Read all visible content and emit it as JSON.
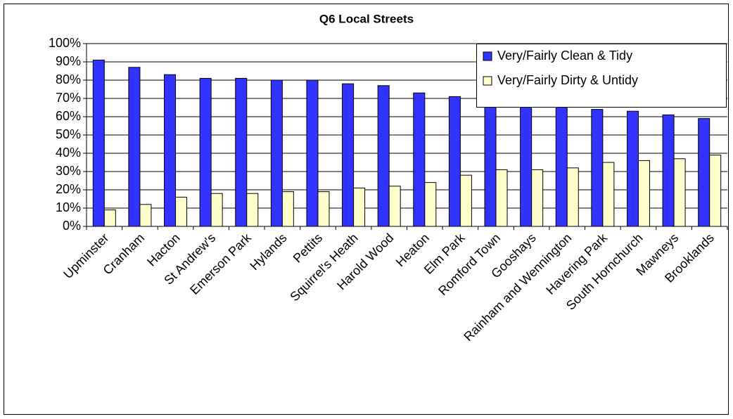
{
  "chart_data": {
    "type": "bar",
    "title": "Q6 Local Streets",
    "categories": [
      "Upminster",
      "Cranham",
      "Hacton",
      "St Andrew's",
      "Emerson Park",
      "Hylands",
      "Pettits",
      "Squirrel's Heath",
      "Harold Wood",
      "Heaton",
      "Elm Park",
      "Romford Town",
      "Gooshays",
      "Rainham and Wennington",
      "Havering Park",
      "South Hornchurch",
      "Mawneys",
      "Brooklands"
    ],
    "series": [
      {
        "name": "Very/Fairly Clean & Tidy",
        "color": "#3333ff",
        "values": [
          91,
          87,
          83,
          81,
          81,
          80,
          80,
          78,
          77,
          73,
          71,
          68,
          67,
          66,
          64,
          63,
          61,
          59
        ]
      },
      {
        "name": "Very/Fairly Dirty & Untidy",
        "color": "#ffffcc",
        "values": [
          9,
          12,
          16,
          18,
          18,
          19,
          19,
          21,
          22,
          24,
          28,
          31,
          31,
          32,
          35,
          36,
          37,
          39
        ]
      }
    ],
    "ylim": [
      0,
      100
    ],
    "yticks": [
      {
        "value": 0,
        "label": "0%"
      },
      {
        "value": 10,
        "label": "10%"
      },
      {
        "value": 20,
        "label": "20%"
      },
      {
        "value": 30,
        "label": "30%"
      },
      {
        "value": 40,
        "label": "40%"
      },
      {
        "value": 50,
        "label": "50%"
      },
      {
        "value": 60,
        "label": "60%"
      },
      {
        "value": 70,
        "label": "70%"
      },
      {
        "value": 80,
        "label": "80%"
      },
      {
        "value": 90,
        "label": "90%"
      },
      {
        "value": 100,
        "label": "100%"
      }
    ],
    "grid": true,
    "legend": "top-right"
  }
}
